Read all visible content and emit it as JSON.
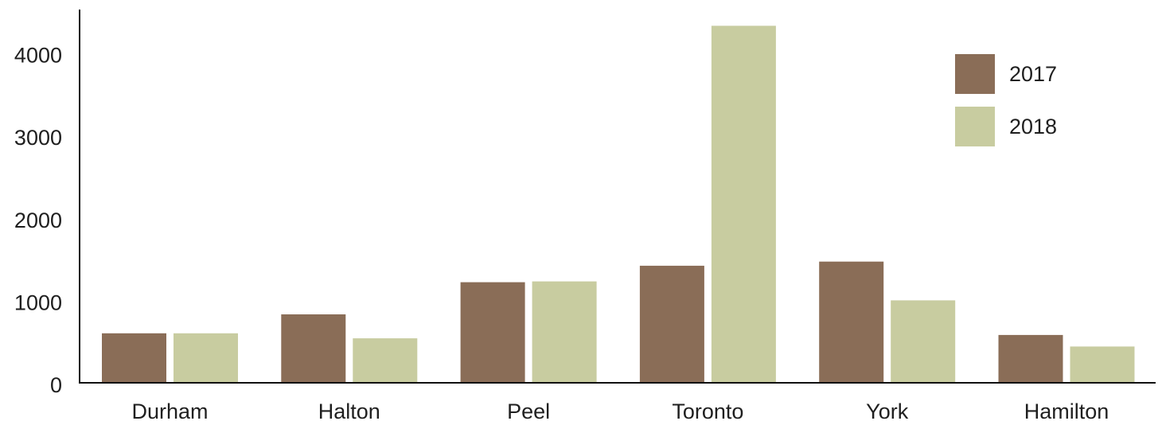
{
  "chart_data": {
    "type": "bar",
    "title": "",
    "xlabel": "",
    "ylabel": "",
    "categories": [
      "Durham",
      "Halton",
      "Peel",
      "Toronto",
      "York",
      "Hamilton"
    ],
    "series": [
      {
        "name": "2017",
        "color": "#8a6d57",
        "values": [
          600,
          830,
          1220,
          1420,
          1470,
          580
        ]
      },
      {
        "name": "2018",
        "color": "#c8cca0",
        "values": [
          600,
          540,
          1230,
          4330,
          1000,
          440
        ]
      }
    ],
    "yticks": [
      0,
      1000,
      2000,
      3000,
      4000
    ],
    "ytick_labels": [
      "0",
      "1000",
      "2000",
      "3000",
      "4000"
    ],
    "ylim": [
      0,
      4500
    ],
    "grid": false,
    "legend_position": "top-right"
  }
}
